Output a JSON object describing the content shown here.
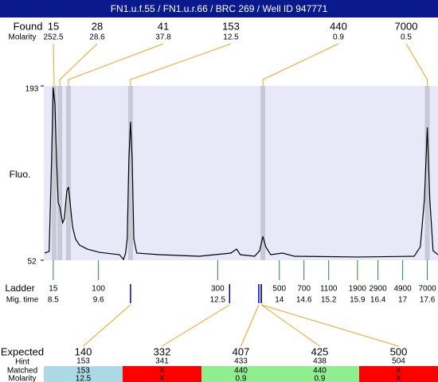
{
  "header": {
    "title": "FN1.u.f.55 / FN1.u.r.66 / BRC 269 / Well ID 947771"
  },
  "found": {
    "label": "Found",
    "molarity_label": "Molarity",
    "peaks": [
      {
        "size": 15,
        "molarity": 252.5,
        "time": 8.52
      },
      {
        "size": 28,
        "molarity": 28.6,
        "time": 8.66
      },
      {
        "size": 41,
        "molarity": 37.8,
        "time": 8.87
      },
      {
        "size": 153,
        "molarity": 12.5,
        "time": 10.38
      },
      {
        "size": 440,
        "molarity": 0.9,
        "time": 13.6
      },
      {
        "size": 7000,
        "molarity": 0.5,
        "time": 17.6
      }
    ]
  },
  "chart_data": {
    "type": "line",
    "ylabel": "Fluo.",
    "xlim": [
      8.27,
      17.86
    ],
    "ylim": [
      52,
      193
    ],
    "yticks": [
      52,
      193
    ],
    "x": [
      8.29,
      8.4,
      8.46,
      8.5,
      8.54,
      8.58,
      8.62,
      8.66,
      8.69,
      8.73,
      8.77,
      8.83,
      8.87,
      8.91,
      8.97,
      9.04,
      9.14,
      9.33,
      9.62,
      10.11,
      10.21,
      10.26,
      10.3,
      10.34,
      10.38,
      10.42,
      10.46,
      10.53,
      11.08,
      12.05,
      12.82,
      12.96,
      13.05,
      13.4,
      13.52,
      13.6,
      13.67,
      13.79,
      14.08,
      14.37,
      15.92,
      17.28,
      17.43,
      17.53,
      17.6,
      17.66,
      17.74,
      17.86
    ],
    "series": [
      {
        "color": "#000000",
        "values": [
          57.8,
          59.1,
          133.8,
          191.7,
          178.8,
          133.8,
          98.4,
          95.1,
          88.7,
          82.3,
          85.5,
          108.0,
          111.2,
          98.4,
          79.0,
          69.4,
          64.2,
          61.0,
          58.4,
          56.5,
          52.6,
          57.8,
          69.4,
          133.8,
          164.0,
          133.8,
          69.4,
          57.8,
          56.5,
          55.2,
          57.8,
          61.0,
          56.5,
          55.2,
          59.7,
          71.3,
          62.9,
          56.5,
          57.8,
          55.2,
          54.6,
          55.2,
          62.9,
          101.6,
          159.5,
          101.6,
          59.7,
          56.5
        ]
      }
    ]
  },
  "ladder": {
    "label": "Ladder",
    "time_label": "Mig. time",
    "sizes": [
      15,
      100,
      300,
      500,
      700,
      1100,
      1900,
      2900,
      4900,
      7000
    ],
    "times": [
      8.5,
      9.6,
      12.5,
      14,
      14.6,
      15.2,
      15.9,
      16.4,
      17,
      17.6
    ]
  },
  "expected": {
    "label": "Expected",
    "hint_label": "Hint",
    "matched_label": "Matched",
    "molarity_label": "Molarity",
    "columns": [
      {
        "expected": 140,
        "hint": 153,
        "matched": 153,
        "molarity": 12.5,
        "time": 10.38,
        "color": "#add8e6"
      },
      {
        "expected": 332,
        "hint": 341,
        "matched": "X",
        "molarity": "X",
        "time": 12.79,
        "color": "#ff0000"
      },
      {
        "expected": 407,
        "hint": 433,
        "matched": 440,
        "molarity": 0.9,
        "time": 13.5,
        "color": "#90ee90"
      },
      {
        "expected": 425,
        "hint": 438,
        "matched": 440,
        "molarity": 0.9,
        "time": 13.56,
        "color": "#90ee90"
      },
      {
        "expected": 500,
        "hint": 504,
        "matched": "X",
        "molarity": "X",
        "time": 13.56,
        "color": "#ff0000"
      }
    ]
  }
}
